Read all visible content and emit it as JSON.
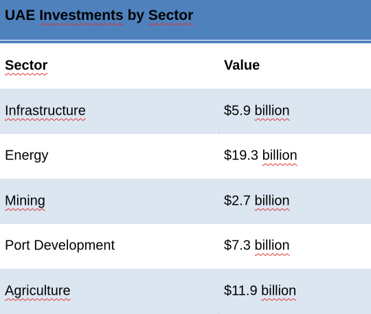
{
  "title": {
    "prefix": "UAE ",
    "word1": "Investments",
    "middle": " by ",
    "word2": "Sector"
  },
  "table": {
    "headers": {
      "sector": "Sector",
      "value": "Value"
    },
    "rows": [
      {
        "sector": "Infrastructure",
        "value_num": "$5.9 ",
        "value_unit": "billion"
      },
      {
        "sector": "Energy",
        "value_num": "$19.3 ",
        "value_unit": "billion"
      },
      {
        "sector": "Mining",
        "value_num": "$2.7 ",
        "value_unit": "billion"
      },
      {
        "sector": "Port Development",
        "value_num": "$7.3 ",
        "value_unit": "billion"
      },
      {
        "sector": "Agriculture",
        "value_num": "$11.9 ",
        "value_unit": "billion"
      }
    ]
  },
  "colors": {
    "title_bar": "#4f81bd",
    "band_row": "#dce6f1",
    "spell_underline": "#e03030"
  }
}
